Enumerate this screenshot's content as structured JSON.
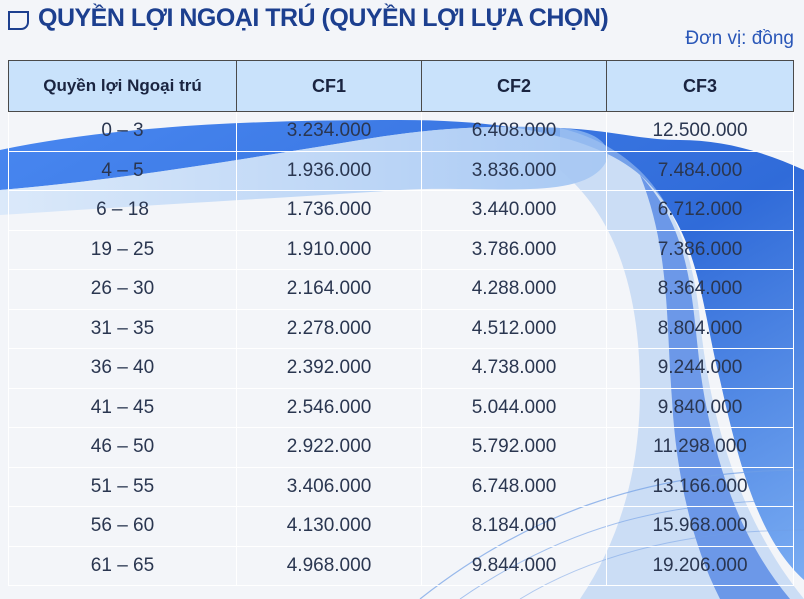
{
  "header": {
    "title": "QUYỀN LỢI NGOẠI TRÚ (QUYỀN LỢI LỰA CHỌN)",
    "unit_label": "Đơn vị: đồng"
  },
  "colors": {
    "title": "#1c3f8f",
    "unit": "#2a57b8",
    "header_bg": "#c9e2fb",
    "wave_blue": "#2f6fe0"
  },
  "icons": {
    "title_icon": "folder-outline-icon"
  },
  "table": {
    "columns": [
      "Quyền lợi Ngoại trú",
      "CF1",
      "CF2",
      "CF3"
    ],
    "rows": [
      [
        "0 – 3",
        "3.234.000",
        "6.408.000",
        "12.500.000"
      ],
      [
        "4 – 5",
        "1.936.000",
        "3.836.000",
        "7.484.000"
      ],
      [
        "6 – 18",
        "1.736.000",
        "3.440.000",
        "6.712.000"
      ],
      [
        "19 – 25",
        "1.910.000",
        "3.786.000",
        "7.386.000"
      ],
      [
        "26 – 30",
        "2.164.000",
        "4.288.000",
        "8.364.000"
      ],
      [
        "31 – 35",
        "2.278.000",
        "4.512.000",
        "8.804.000"
      ],
      [
        "36 – 40",
        "2.392.000",
        "4.738.000",
        "9.244.000"
      ],
      [
        "41 – 45",
        "2.546.000",
        "5.044.000",
        "9.840.000"
      ],
      [
        "46 – 50",
        "2.922.000",
        "5.792.000",
        "11.298.000"
      ],
      [
        "51 – 55",
        "3.406.000",
        "6.748.000",
        "13.166.000"
      ],
      [
        "56 – 60",
        "4.130.000",
        "8.184.000",
        "15.968.000"
      ],
      [
        "61 – 65",
        "4.968.000",
        "9.844.000",
        "19.206.000"
      ]
    ]
  }
}
